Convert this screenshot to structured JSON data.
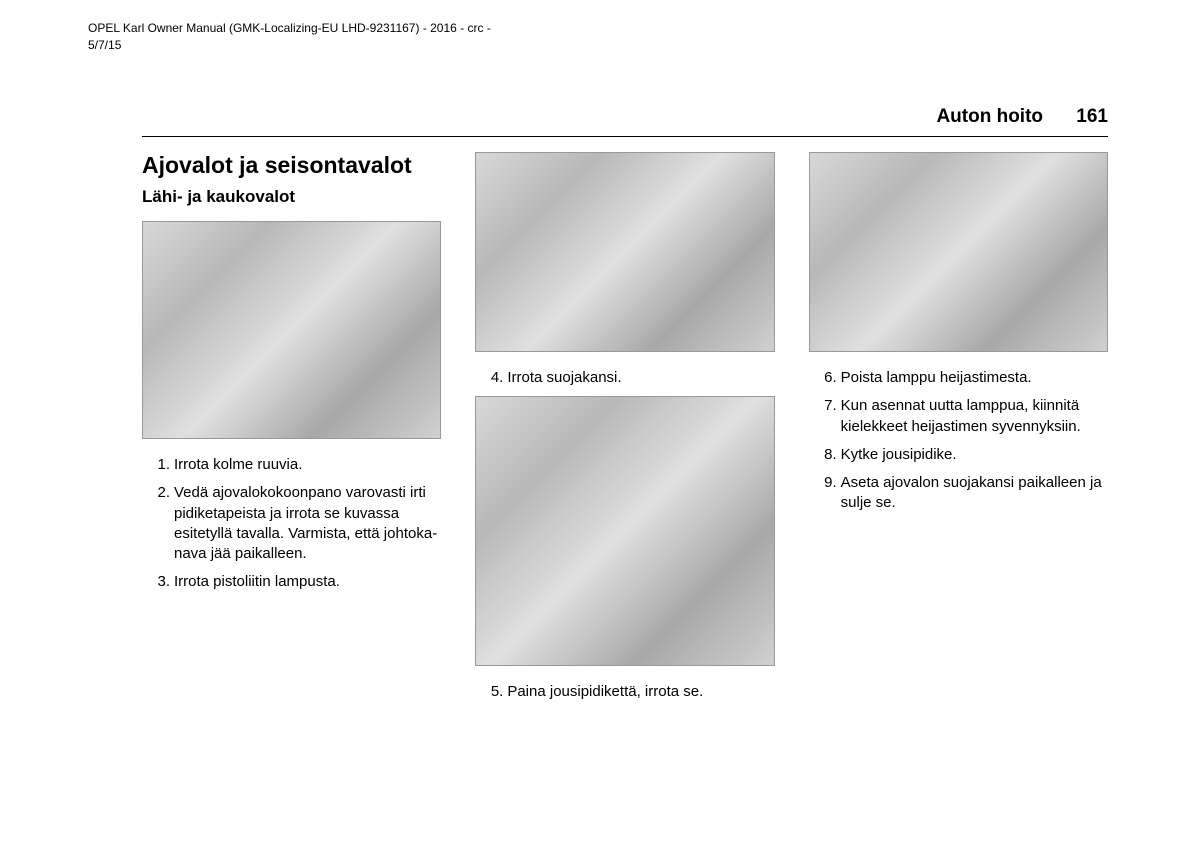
{
  "documentHeader": {
    "line1": "OPEL Karl Owner Manual (GMK-Localizing-EU LHD-9231167) - 2016 - crc -",
    "line2": "5/7/15"
  },
  "pageHeader": {
    "sectionTitle": "Auton hoito",
    "pageNumber": "161"
  },
  "column1": {
    "mainHeading": "Ajovalot ja seisontavalot",
    "subHeading": "Lähi- ja kaukovalot",
    "steps": [
      "Irrota kolme ruuvia.",
      "Vedä ajovalokokoonpano varovasti irti pidiketapeista ja irrota se kuvassa esitetyllä tavalla. Varmista, että johtoka­nava jää paikalleen.",
      "Irrota pistoliitin lampusta."
    ]
  },
  "column2": {
    "step4": "Irrota suojakansi.",
    "step5": "Paina jousipidikettä, irrota se."
  },
  "column3": {
    "steps": [
      "Poista lamppu heijastimesta.",
      "Kun asennat uutta lamppua, kiinnitä kielekkeet heijastimen syvennyksiin.",
      "Kytke jousipidike.",
      "Aseta ajovalon suojakansi paikalleen ja sulje se."
    ]
  }
}
